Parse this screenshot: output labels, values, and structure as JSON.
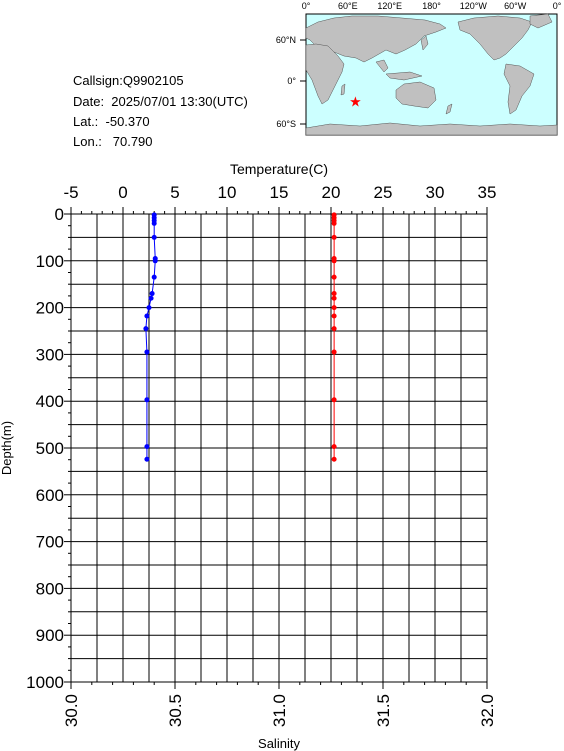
{
  "station": {
    "callsign": "Callsign:Q9902105",
    "date": "Date:  2025/07/01 13:30(UTC)",
    "lat": "Lat.:  -50.370",
    "lon": "Lon.:   70.790"
  },
  "map": {
    "lon_labels": [
      "0°",
      "60°E",
      "120°E",
      "180°",
      "120°W",
      "60°W",
      "0°"
    ],
    "lat_labels": [
      "60°N",
      "0°",
      "60°S"
    ],
    "marker_symbol": "★",
    "marker_lon": 70.79,
    "marker_lat": -50.37,
    "colors": {
      "ocean": "#ccffff",
      "land": "#c0c0c0",
      "marker": "#ff0000"
    }
  },
  "chart_data": {
    "type": "line",
    "ylabel": "Depth(m)",
    "ylim": [
      1000,
      0
    ],
    "yticks": [
      0,
      100,
      200,
      300,
      400,
      500,
      600,
      700,
      800,
      900,
      1000
    ],
    "top_axis": {
      "label": "Temperature(C)",
      "range": [
        -5,
        35
      ],
      "ticks": [
        -5,
        0,
        5,
        10,
        15,
        20,
        25,
        30,
        35
      ]
    },
    "bottom_axis": {
      "label": "Salinity",
      "range": [
        30.0,
        32.0
      ],
      "ticks": [
        "30.0",
        "30.5",
        "31.0",
        "31.5",
        "32.0"
      ]
    },
    "grid": true,
    "series": [
      {
        "axis": "top",
        "color": "#0000ff",
        "points": [
          [
            3.0,
            2
          ],
          [
            3.0,
            8
          ],
          [
            3.0,
            14
          ],
          [
            3.0,
            20
          ],
          [
            3.0,
            50
          ],
          [
            3.1,
            95
          ],
          [
            3.1,
            100
          ],
          [
            3.0,
            135
          ],
          [
            2.8,
            170
          ],
          [
            2.7,
            180
          ],
          [
            2.5,
            200
          ],
          [
            2.3,
            218
          ],
          [
            2.2,
            245
          ],
          [
            2.3,
            295
          ],
          [
            2.3,
            397
          ],
          [
            2.3,
            497
          ],
          [
            2.3,
            524
          ]
        ]
      },
      {
        "axis": "top",
        "color": "#ff0000",
        "points": [
          [
            20.3,
            2
          ],
          [
            20.3,
            8
          ],
          [
            20.3,
            14
          ],
          [
            20.3,
            20
          ],
          [
            20.3,
            50
          ],
          [
            20.3,
            95
          ],
          [
            20.3,
            100
          ],
          [
            20.3,
            135
          ],
          [
            20.3,
            170
          ],
          [
            20.3,
            180
          ],
          [
            20.3,
            200
          ],
          [
            20.3,
            218
          ],
          [
            20.3,
            245
          ],
          [
            20.3,
            295
          ],
          [
            20.3,
            397
          ],
          [
            20.3,
            497
          ],
          [
            20.3,
            524
          ]
        ]
      }
    ]
  }
}
